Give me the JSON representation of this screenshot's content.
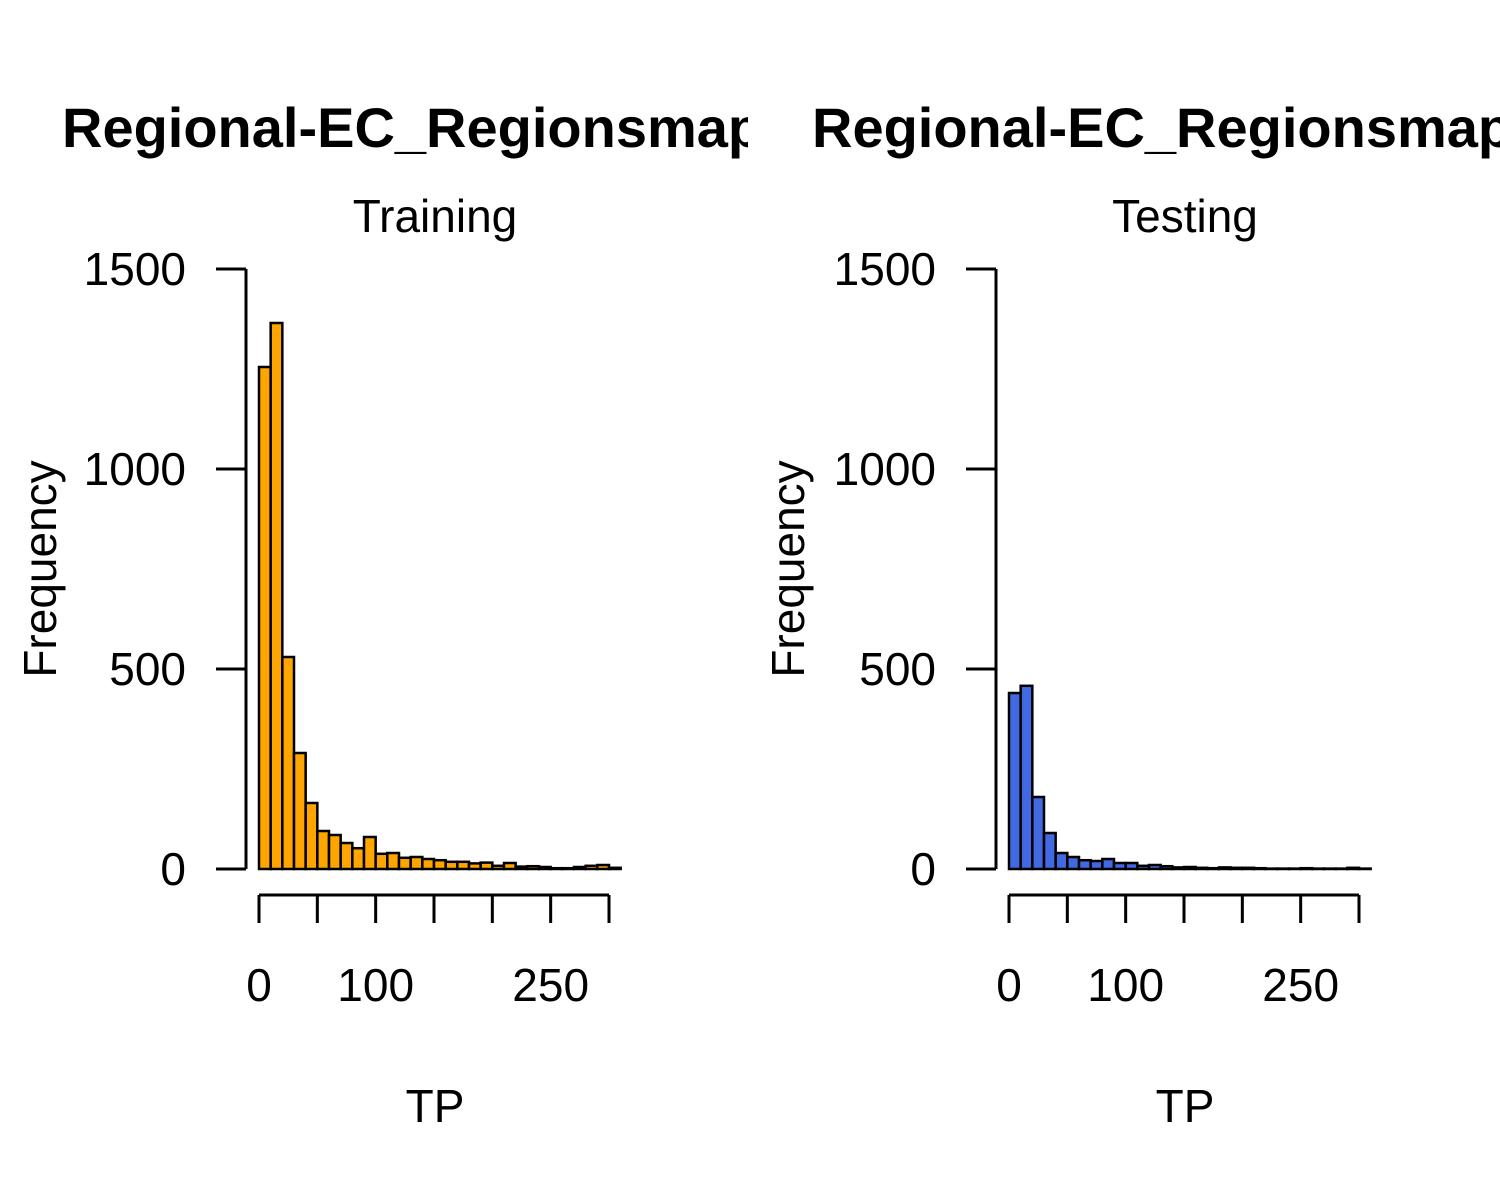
{
  "chart_data": [
    {
      "type": "bar",
      "title": "Regional-EC_Regionsmaps",
      "subtitle": "Training",
      "xlabel": "TP",
      "ylabel": "Frequency",
      "bar_color": "#FFA500",
      "ylim": [
        0,
        1500
      ],
      "xlim": [
        0,
        310
      ],
      "y_ticks": [
        0,
        500,
        1000,
        1500
      ],
      "x_ticks": [
        0,
        50,
        100,
        150,
        200,
        250,
        300
      ],
      "x_tick_labels": [
        "0",
        "",
        "100",
        "",
        "",
        "250",
        ""
      ],
      "bin_width": 10,
      "bins": [
        {
          "x0": 0,
          "x1": 10,
          "value": 1255
        },
        {
          "x0": 10,
          "x1": 20,
          "value": 1365
        },
        {
          "x0": 20,
          "x1": 30,
          "value": 530
        },
        {
          "x0": 30,
          "x1": 40,
          "value": 290
        },
        {
          "x0": 40,
          "x1": 50,
          "value": 165
        },
        {
          "x0": 50,
          "x1": 60,
          "value": 95
        },
        {
          "x0": 60,
          "x1": 70,
          "value": 85
        },
        {
          "x0": 70,
          "x1": 80,
          "value": 65
        },
        {
          "x0": 80,
          "x1": 90,
          "value": 52
        },
        {
          "x0": 90,
          "x1": 100,
          "value": 80
        },
        {
          "x0": 100,
          "x1": 110,
          "value": 38
        },
        {
          "x0": 110,
          "x1": 120,
          "value": 40
        },
        {
          "x0": 120,
          "x1": 130,
          "value": 28
        },
        {
          "x0": 130,
          "x1": 140,
          "value": 30
        },
        {
          "x0": 140,
          "x1": 150,
          "value": 25
        },
        {
          "x0": 150,
          "x1": 160,
          "value": 22
        },
        {
          "x0": 160,
          "x1": 170,
          "value": 18
        },
        {
          "x0": 170,
          "x1": 180,
          "value": 18
        },
        {
          "x0": 180,
          "x1": 190,
          "value": 14
        },
        {
          "x0": 190,
          "x1": 200,
          "value": 16
        },
        {
          "x0": 200,
          "x1": 210,
          "value": 8
        },
        {
          "x0": 210,
          "x1": 220,
          "value": 15
        },
        {
          "x0": 220,
          "x1": 230,
          "value": 6
        },
        {
          "x0": 230,
          "x1": 240,
          "value": 7
        },
        {
          "x0": 240,
          "x1": 250,
          "value": 5
        },
        {
          "x0": 250,
          "x1": 260,
          "value": 2
        },
        {
          "x0": 260,
          "x1": 270,
          "value": 2
        },
        {
          "x0": 270,
          "x1": 280,
          "value": 5
        },
        {
          "x0": 280,
          "x1": 290,
          "value": 8
        },
        {
          "x0": 290,
          "x1": 300,
          "value": 10
        },
        {
          "x0": 300,
          "x1": 310,
          "value": 3
        }
      ]
    },
    {
      "type": "bar",
      "title": "Regional-EC_Regionsmaps",
      "subtitle": "Testing",
      "xlabel": "TP",
      "ylabel": "Frequency",
      "bar_color": "#4169E1",
      "ylim": [
        0,
        1500
      ],
      "xlim": [
        0,
        310
      ],
      "y_ticks": [
        0,
        500,
        1000,
        1500
      ],
      "x_ticks": [
        0,
        50,
        100,
        150,
        200,
        250,
        300
      ],
      "x_tick_labels": [
        "0",
        "",
        "100",
        "",
        "",
        "250",
        ""
      ],
      "bin_width": 10,
      "bins": [
        {
          "x0": 0,
          "x1": 10,
          "value": 440
        },
        {
          "x0": 10,
          "x1": 20,
          "value": 458
        },
        {
          "x0": 20,
          "x1": 30,
          "value": 180
        },
        {
          "x0": 30,
          "x1": 40,
          "value": 90
        },
        {
          "x0": 40,
          "x1": 50,
          "value": 40
        },
        {
          "x0": 50,
          "x1": 60,
          "value": 30
        },
        {
          "x0": 60,
          "x1": 70,
          "value": 22
        },
        {
          "x0": 70,
          "x1": 80,
          "value": 20
        },
        {
          "x0": 80,
          "x1": 90,
          "value": 25
        },
        {
          "x0": 90,
          "x1": 100,
          "value": 15
        },
        {
          "x0": 100,
          "x1": 110,
          "value": 15
        },
        {
          "x0": 110,
          "x1": 120,
          "value": 8
        },
        {
          "x0": 120,
          "x1": 130,
          "value": 10
        },
        {
          "x0": 130,
          "x1": 140,
          "value": 7
        },
        {
          "x0": 140,
          "x1": 150,
          "value": 4
        },
        {
          "x0": 150,
          "x1": 160,
          "value": 5
        },
        {
          "x0": 160,
          "x1": 170,
          "value": 3
        },
        {
          "x0": 170,
          "x1": 180,
          "value": 2
        },
        {
          "x0": 180,
          "x1": 190,
          "value": 4
        },
        {
          "x0": 190,
          "x1": 200,
          "value": 3
        },
        {
          "x0": 200,
          "x1": 210,
          "value": 3
        },
        {
          "x0": 210,
          "x1": 220,
          "value": 2
        },
        {
          "x0": 220,
          "x1": 230,
          "value": 1
        },
        {
          "x0": 230,
          "x1": 240,
          "value": 1
        },
        {
          "x0": 240,
          "x1": 250,
          "value": 1
        },
        {
          "x0": 250,
          "x1": 260,
          "value": 2
        },
        {
          "x0": 260,
          "x1": 270,
          "value": 1
        },
        {
          "x0": 270,
          "x1": 280,
          "value": 1
        },
        {
          "x0": 280,
          "x1": 290,
          "value": 1
        },
        {
          "x0": 290,
          "x1": 300,
          "value": 3
        },
        {
          "x0": 300,
          "x1": 310,
          "value": 1
        }
      ]
    }
  ]
}
